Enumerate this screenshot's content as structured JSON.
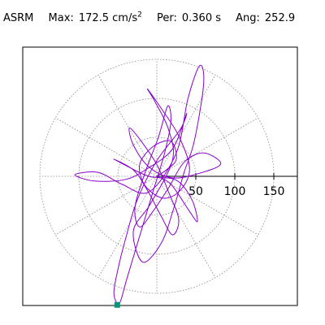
{
  "header": {
    "label": "ASRM",
    "max_label": "Max:",
    "max_value": "172.5 cm/s",
    "max_unit_exp": "2",
    "per_label": "Per:",
    "per_value": "0.360 s",
    "ang_label": "Ang:",
    "ang_value": "252.9"
  },
  "colors": {
    "trace": "#8800cc",
    "marker": "#009977",
    "grid": "#888888",
    "axis": "#000000"
  },
  "chart_data": {
    "type": "polar-orbit",
    "title": "ASRM  Max: 172.5 cm/s2  Per: 0.360 s  Ang: 252.9",
    "radial_ticks": [
      "50",
      "100",
      "150"
    ],
    "radial_tick_values": [
      50,
      100,
      150
    ],
    "radial_max": 150,
    "angular_grid_deg": [
      0,
      30,
      60,
      90,
      120,
      150,
      180,
      210,
      240,
      270,
      300,
      330
    ],
    "max_value": 172.5,
    "max_angle_deg": 252.9,
    "grid": true,
    "orbit": [
      [
        0,
        0
      ],
      [
        12,
        8
      ],
      [
        25,
        22
      ],
      [
        18,
        45
      ],
      [
        -5,
        38
      ],
      [
        -22,
        15
      ],
      [
        -15,
        -12
      ],
      [
        8,
        -28
      ],
      [
        30,
        -18
      ],
      [
        42,
        10
      ],
      [
        28,
        52
      ],
      [
        5,
        88
      ],
      [
        -12,
        112
      ],
      [
        -2,
        95
      ],
      [
        15,
        60
      ],
      [
        20,
        20
      ],
      [
        -8,
        -35
      ],
      [
        -30,
        -70
      ],
      [
        -18,
        -110
      ],
      [
        6,
        -85
      ],
      [
        22,
        -40
      ],
      [
        35,
        5
      ],
      [
        48,
        45
      ],
      [
        60,
        118
      ],
      [
        55,
        142
      ],
      [
        40,
        100
      ],
      [
        25,
        30
      ],
      [
        -10,
        -20
      ],
      [
        -45,
        -10
      ],
      [
        -75,
        5
      ],
      [
        -105,
        2
      ],
      [
        -80,
        -6
      ],
      [
        -40,
        -4
      ],
      [
        -12,
        10
      ],
      [
        20,
        35
      ],
      [
        38,
        80
      ],
      [
        30,
        60
      ],
      [
        0,
        20
      ],
      [
        -25,
        -30
      ],
      [
        -40,
        -80
      ],
      [
        -50,
        -120
      ],
      [
        -55,
        -150
      ],
      [
        -48,
        -163
      ],
      [
        -38,
        -130
      ],
      [
        -20,
        -70
      ],
      [
        -5,
        -20
      ],
      [
        10,
        30
      ],
      [
        18,
        70
      ],
      [
        14,
        90
      ],
      [
        2,
        50
      ],
      [
        -15,
        5
      ],
      [
        -28,
        -40
      ],
      [
        -22,
        -65
      ],
      [
        -5,
        -45
      ],
      [
        15,
        -15
      ],
      [
        35,
        18
      ],
      [
        60,
        30
      ],
      [
        82,
        16
      ],
      [
        55,
        4
      ],
      [
        20,
        -2
      ],
      [
        -10,
        12
      ],
      [
        -30,
        40
      ],
      [
        -35,
        62
      ],
      [
        -20,
        45
      ],
      [
        0,
        15
      ],
      [
        15,
        -20
      ],
      [
        28,
        -55
      ],
      [
        20,
        -75
      ],
      [
        5,
        -50
      ],
      [
        -12,
        -18
      ],
      [
        -30,
        8
      ],
      [
        -55,
        22
      ],
      [
        -40,
        14
      ],
      [
        -10,
        0
      ],
      [
        25,
        -5
      ],
      [
        45,
        -30
      ],
      [
        52,
        -58
      ],
      [
        40,
        -42
      ],
      [
        18,
        -10
      ],
      [
        0,
        0
      ]
    ]
  }
}
